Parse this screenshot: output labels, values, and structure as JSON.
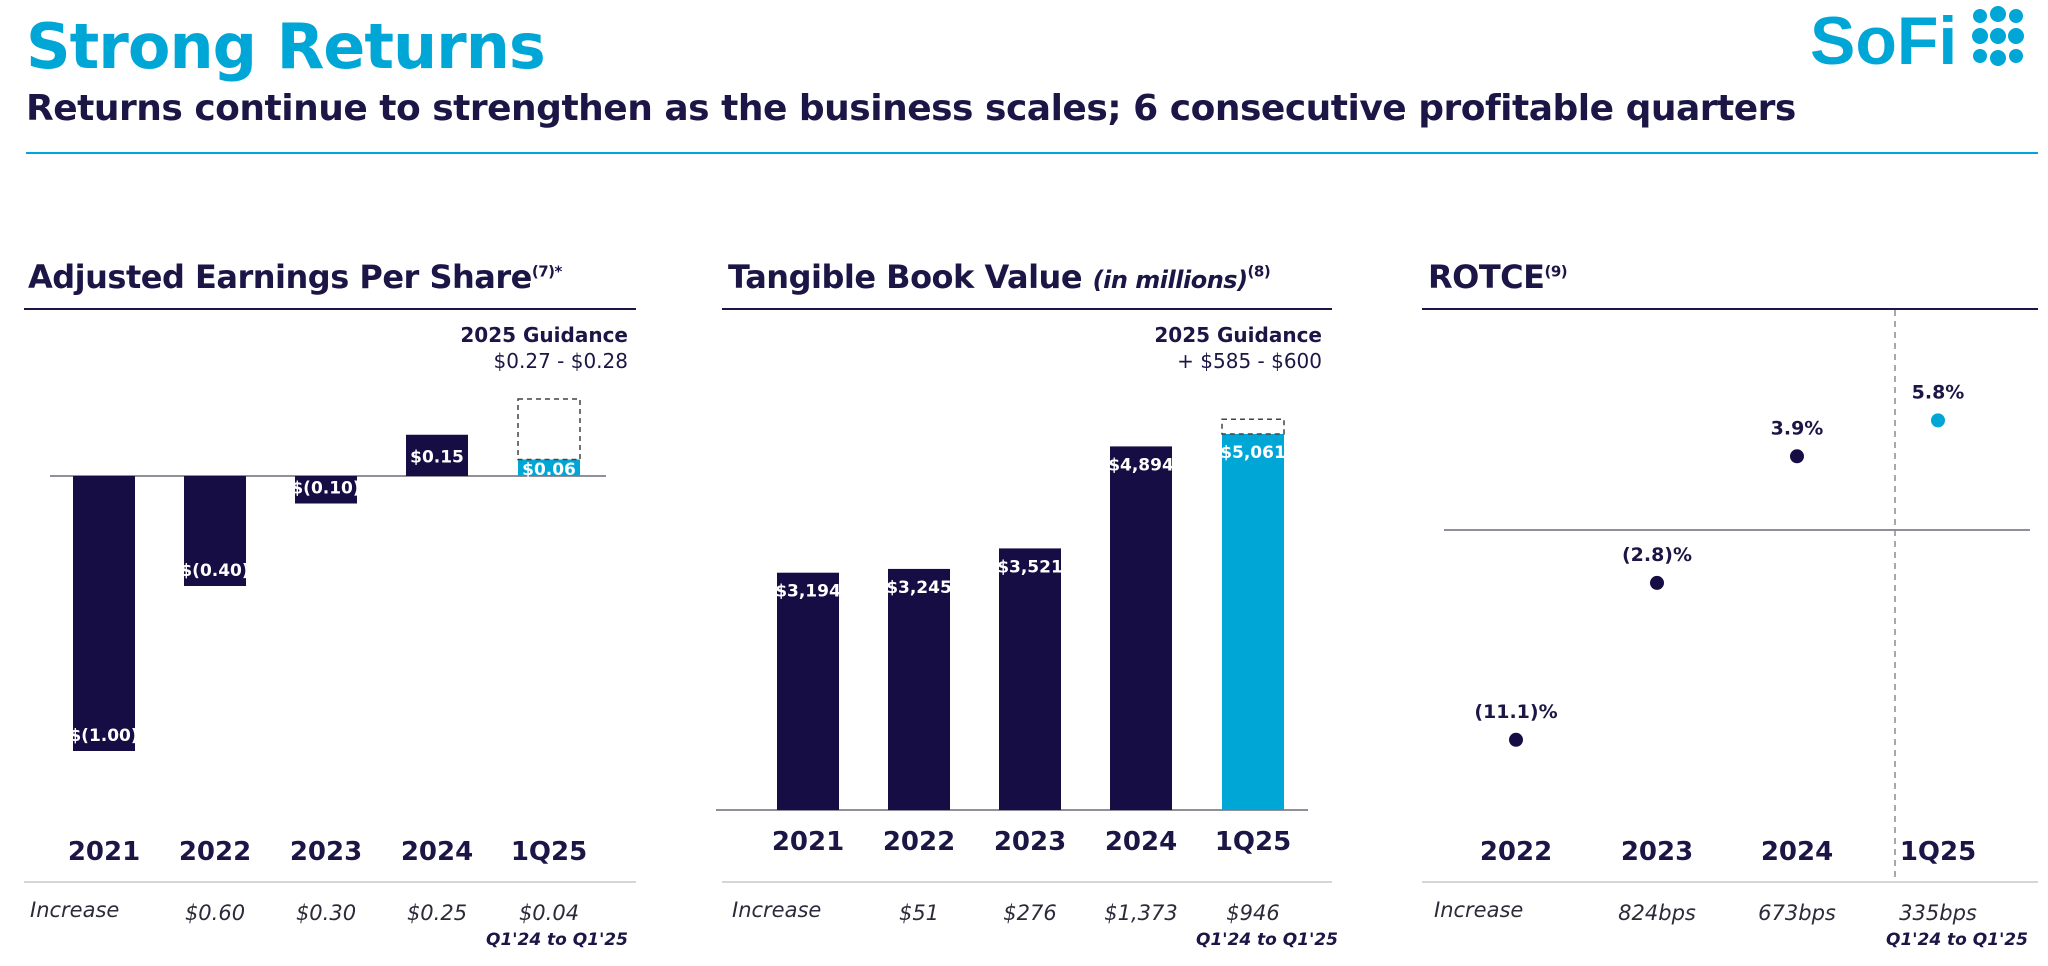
{
  "title": "Strong Returns",
  "subtitle": "Returns continue to strengthen as the business scales; 6 consecutive profitable quarters",
  "logo_text": "SoFi",
  "colors": {
    "navy": "#150d44",
    "teal": "#00a6d6",
    "text": "#1b1646"
  },
  "increase_label": "Increase",
  "chart_data": [
    {
      "type": "bar",
      "title": "Adjusted Earnings Per Share",
      "title_note": "(7)*",
      "categories": [
        "2021",
        "2022",
        "2023",
        "2024",
        "1Q25"
      ],
      "values": [
        -1.0,
        -0.4,
        -0.1,
        0.15,
        0.06
      ],
      "value_labels": [
        "$(1.00)",
        "$(0.40)",
        "$(0.10)",
        "$0.15",
        "$0.06"
      ],
      "guidance_value": 0.28,
      "guidance": {
        "label": "2025 Guidance",
        "range": "$0.27 - $0.28"
      },
      "increase": [
        "",
        "$0.60",
        "$0.30",
        "$0.25",
        "$0.04"
      ],
      "footnote": "Q1'24 to Q1'25",
      "ylim": [
        -1.0,
        0.28
      ]
    },
    {
      "type": "bar",
      "title": "Tangible Book Value",
      "title_ital": "(in millions)",
      "title_note": "(8)",
      "categories": [
        "2021",
        "2022",
        "2023",
        "2024",
        "1Q25"
      ],
      "values": [
        3194,
        3245,
        3521,
        4894,
        5061
      ],
      "value_labels": [
        "$3,194",
        "$3,245",
        "$3,521",
        "$4,894",
        "$5,061"
      ],
      "guidance_value": 5260,
      "guidance": {
        "label": "2025 Guidance",
        "range": "+ $585 - $600"
      },
      "increase": [
        "$51",
        "$276",
        "$1,373",
        "$946"
      ],
      "footnote": "Q1'24 to Q1'25",
      "ylim": [
        0,
        5260
      ]
    },
    {
      "type": "scatter",
      "title": "ROTCE",
      "title_note": "(9)",
      "categories": [
        "2022",
        "2023",
        "2024",
        "1Q25"
      ],
      "values": [
        -11.1,
        -2.8,
        3.9,
        5.8
      ],
      "value_labels": [
        "(11.1)%",
        "(2.8)%",
        "3.9%",
        "5.8%"
      ],
      "increase": [
        "",
        "824bps",
        "673bps",
        "335bps"
      ],
      "footnote": "Q1'24 to Q1'25",
      "ylim": [
        -11.1,
        5.8
      ]
    }
  ]
}
